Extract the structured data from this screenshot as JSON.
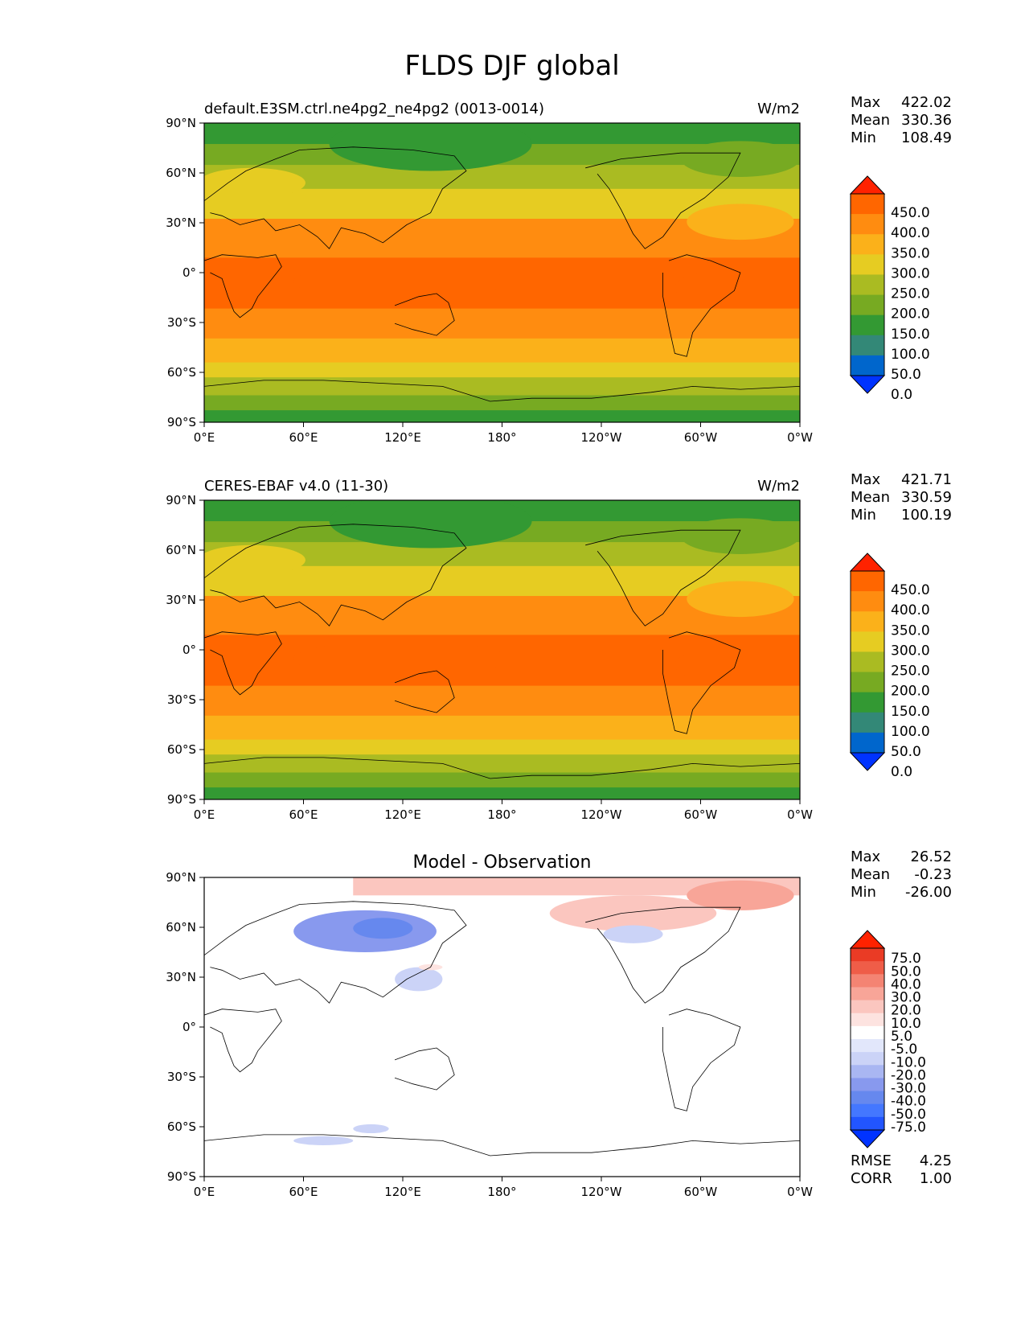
{
  "figure": {
    "title": "FLDS DJF global"
  },
  "axes": {
    "lat_ticks": [
      "90°N",
      "60°N",
      "30°N",
      "0°",
      "30°S",
      "60°S",
      "90°S"
    ],
    "lon_ticks": [
      "0°E",
      "60°E",
      "120°E",
      "180°",
      "120°W",
      "60°W",
      "0°W"
    ]
  },
  "panels": [
    {
      "id": "test",
      "title_left": "default.E3SM.ctrl.ne4pg2_ne4pg2 (0013-0014)",
      "title_center": "",
      "units": "W/m2",
      "stats": [
        {
          "label": "Max",
          "value": "422.02"
        },
        {
          "label": "Mean",
          "value": "330.36"
        },
        {
          "label": "Min",
          "value": "108.49"
        }
      ],
      "colorbar_ticks": [
        "450.0",
        "400.0",
        "350.0",
        "300.0",
        "250.0",
        "200.0",
        "150.0",
        "100.0",
        "50.0",
        "0.0"
      ]
    },
    {
      "id": "reference",
      "title_left": "CERES-EBAF v4.0 (11-30)",
      "title_center": "",
      "units": "W/m2",
      "stats": [
        {
          "label": "Max",
          "value": "421.71"
        },
        {
          "label": "Mean",
          "value": "330.59"
        },
        {
          "label": "Min",
          "value": "100.19"
        }
      ],
      "colorbar_ticks": [
        "450.0",
        "400.0",
        "350.0",
        "300.0",
        "250.0",
        "200.0",
        "150.0",
        "100.0",
        "50.0",
        "0.0"
      ]
    },
    {
      "id": "difference",
      "title_left": "",
      "title_center": "Model - Observation",
      "units": "",
      "stats": [
        {
          "label": "Max",
          "value": "26.52"
        },
        {
          "label": "Mean",
          "value": "-0.23"
        },
        {
          "label": "Min",
          "value": "-26.00"
        }
      ],
      "colorbar_ticks": [
        "75.0",
        "50.0",
        "40.0",
        "30.0",
        "20.0",
        "10.0",
        "5.0",
        "-5.0",
        "-10.0",
        "-20.0",
        "-30.0",
        "-40.0",
        "-50.0",
        "-75.0"
      ],
      "metrics": [
        {
          "label": "RMSE",
          "value": "4.25"
        },
        {
          "label": "CORR",
          "value": "1.00"
        }
      ]
    }
  ],
  "colors": {
    "field": [
      "#0033ff",
      "#0066cc",
      "#338877",
      "#339933",
      "#77aa22",
      "#aabb22",
      "#e6cc22",
      "#fbb11a",
      "#ff8c10",
      "#ff6600",
      "#ff2200"
    ],
    "diff": [
      "#0033ff",
      "#2255ff",
      "#4477ff",
      "#6688ee",
      "#8899ee",
      "#a9b6f2",
      "#cbd3f7",
      "#e2e7fb",
      "#ffffff",
      "#fde3e0",
      "#fbc6bf",
      "#f8a598",
      "#f48473",
      "#ef5d48",
      "#ea3b25",
      "#ff2200"
    ],
    "coast": "#000000"
  }
}
